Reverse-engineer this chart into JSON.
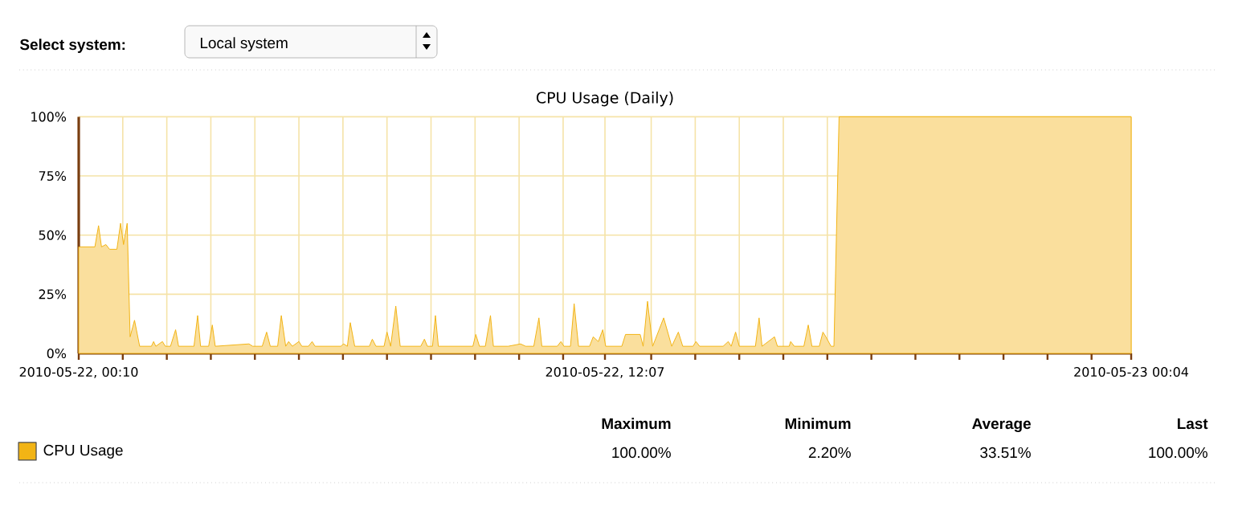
{
  "chart_data": {
    "type": "area",
    "title": "CPU Usage (Daily)",
    "x": [
      "2010-05-22T00:10",
      "2010-05-22T00:32",
      "2010-05-22T00:37",
      "2010-05-22T00:41",
      "2010-05-22T00:47",
      "2010-05-22T00:52",
      "2010-05-22T01:02",
      "2010-05-22T01:07",
      "2010-05-22T01:11",
      "2010-05-22T01:16",
      "2010-05-22T01:20",
      "2010-05-22T01:26",
      "2010-05-22T01:33",
      "2010-05-22T01:49",
      "2010-05-22T01:52",
      "2010-05-22T01:55",
      "2010-05-22T02:04",
      "2010-05-22T02:08",
      "2010-05-22T02:15",
      "2010-05-22T02:22",
      "2010-05-22T02:26",
      "2010-05-22T02:47",
      "2010-05-22T02:52",
      "2010-05-22T02:56",
      "2010-05-22T03:07",
      "2010-05-22T03:12",
      "2010-05-22T03:16",
      "2010-05-22T04:02",
      "2010-05-22T04:07",
      "2010-05-22T04:20",
      "2010-05-22T04:26",
      "2010-05-22T04:31",
      "2010-05-22T04:41",
      "2010-05-22T04:46",
      "2010-05-22T04:52",
      "2010-05-22T04:56",
      "2010-05-22T05:01",
      "2010-05-22T05:10",
      "2010-05-22T05:14",
      "2010-05-22T05:23",
      "2010-05-22T05:28",
      "2010-05-22T05:32",
      "2010-05-22T06:07",
      "2010-05-22T06:11",
      "2010-05-22T06:16",
      "2010-05-22T06:20",
      "2010-05-22T06:26",
      "2010-05-22T06:46",
      "2010-05-22T06:50",
      "2010-05-22T06:55",
      "2010-05-22T07:06",
      "2010-05-22T07:10",
      "2010-05-22T07:15",
      "2010-05-22T07:22",
      "2010-05-22T07:28",
      "2010-05-22T07:56",
      "2010-05-22T08:01",
      "2010-05-22T08:05",
      "2010-05-22T08:12",
      "2010-05-22T08:16",
      "2010-05-22T08:20",
      "2010-05-22T08:34",
      "2010-05-22T08:56",
      "2010-05-22T09:07",
      "2010-05-22T09:11",
      "2010-05-22T09:16",
      "2010-05-22T09:24",
      "2010-05-22T09:31",
      "2010-05-22T09:35",
      "2010-05-22T09:55",
      "2010-05-22T10:12",
      "2010-05-22T10:19",
      "2010-05-22T10:30",
      "2010-05-22T10:37",
      "2010-05-22T10:41",
      "2010-05-22T11:02",
      "2010-05-22T11:07",
      "2010-05-22T11:11",
      "2010-05-22T11:20",
      "2010-05-22T11:25",
      "2010-05-22T11:31",
      "2010-05-22T11:46",
      "2010-05-22T11:51",
      "2010-05-22T11:58",
      "2010-05-22T12:04",
      "2010-05-22T12:08",
      "2010-05-22T12:30",
      "2010-05-22T12:35",
      "2010-05-22T12:55",
      "2010-05-22T12:59",
      "2010-05-22T13:05",
      "2010-05-22T13:12",
      "2010-05-22T13:27",
      "2010-05-22T13:38",
      "2010-05-22T13:47",
      "2010-05-22T13:53",
      "2010-05-22T14:07",
      "2010-05-22T14:11",
      "2010-05-22T14:16",
      "2010-05-22T14:48",
      "2010-05-22T14:55",
      "2010-05-22T14:59",
      "2010-05-22T15:05",
      "2010-05-22T15:10",
      "2010-05-22T15:32",
      "2010-05-22T15:37",
      "2010-05-22T15:41",
      "2010-05-22T15:58",
      "2010-05-22T16:02",
      "2010-05-22T16:18",
      "2010-05-22T16:20",
      "2010-05-22T16:25",
      "2010-05-22T16:38",
      "2010-05-22T16:44",
      "2010-05-22T16:49",
      "2010-05-22T16:59",
      "2010-05-22T17:04",
      "2010-05-22T17:08",
      "2010-05-22T17:15",
      "2010-05-22T17:19",
      "2010-05-22T17:26",
      "2010-05-23T00:04"
    ],
    "series": [
      {
        "name": "CPU Usage",
        "color": "#f2b415",
        "values": [
          45,
          45,
          54,
          45,
          46,
          44,
          44,
          55,
          46,
          55,
          7,
          14,
          3,
          3,
          5,
          3,
          5,
          3,
          3,
          10,
          3,
          3,
          16,
          3,
          3,
          12,
          3,
          4,
          3,
          3,
          9,
          3,
          3,
          16,
          3,
          5,
          3,
          5,
          3,
          3,
          5,
          3,
          3,
          4,
          3,
          13,
          3,
          3,
          6,
          3,
          3,
          9,
          3,
          20,
          3,
          3,
          6,
          3,
          3,
          16,
          3,
          3,
          3,
          3,
          8,
          3,
          3,
          16,
          3,
          3,
          4,
          3,
          3,
          15,
          3,
          3,
          5,
          3,
          3,
          21,
          3,
          3,
          7,
          5,
          10,
          3,
          3,
          8,
          8,
          3,
          22,
          3,
          15,
          3,
          9,
          3,
          3,
          5,
          3,
          3,
          5,
          3,
          9,
          3,
          3,
          15,
          3,
          7,
          3,
          3,
          5,
          3,
          3,
          12,
          3,
          3,
          9,
          7,
          3,
          3,
          100,
          100
        ]
      }
    ],
    "xlim": [
      "2010-05-22T00:10",
      "2010-05-23T00:04"
    ],
    "xticks": [
      {
        "value": "2010-05-22T00:10",
        "label": "2010-05-22, 00:10"
      },
      {
        "value": "2010-05-22T01:10",
        "label": null
      },
      {
        "value": "2010-05-22T02:10",
        "label": null
      },
      {
        "value": "2010-05-22T03:10",
        "label": null
      },
      {
        "value": "2010-05-22T04:10",
        "label": null
      },
      {
        "value": "2010-05-22T05:10",
        "label": null
      },
      {
        "value": "2010-05-22T06:10",
        "label": null
      },
      {
        "value": "2010-05-22T07:10",
        "label": null
      },
      {
        "value": "2010-05-22T08:10",
        "label": null
      },
      {
        "value": "2010-05-22T09:10",
        "label": null
      },
      {
        "value": "2010-05-22T10:10",
        "label": null
      },
      {
        "value": "2010-05-22T11:10",
        "label": null
      },
      {
        "value": "2010-05-22T12:07",
        "label": "2010-05-22, 12:07"
      },
      {
        "value": "2010-05-22T13:10",
        "label": null
      },
      {
        "value": "2010-05-22T14:10",
        "label": null
      },
      {
        "value": "2010-05-22T15:10",
        "label": null
      },
      {
        "value": "2010-05-22T16:10",
        "label": null
      },
      {
        "value": "2010-05-22T17:10",
        "label": null
      },
      {
        "value": "2010-05-22T18:10",
        "label": null
      },
      {
        "value": "2010-05-22T19:10",
        "label": null
      },
      {
        "value": "2010-05-22T20:10",
        "label": null
      },
      {
        "value": "2010-05-22T21:10",
        "label": null
      },
      {
        "value": "2010-05-22T22:10",
        "label": null
      },
      {
        "value": "2010-05-22T23:10",
        "label": null
      },
      {
        "value": "2010-05-23T00:04",
        "label": "2010-05-23 00:04"
      }
    ],
    "ylim": [
      0,
      100
    ],
    "yticks": [
      {
        "value": 0,
        "label": "0%"
      },
      {
        "value": 25,
        "label": "25%"
      },
      {
        "value": 50,
        "label": "50%"
      },
      {
        "value": 75,
        "label": "75%"
      },
      {
        "value": 100,
        "label": "100%"
      }
    ],
    "grid": true,
    "legend": "bottom",
    "annotations": [
      "Select system:",
      "Local system",
      "Maximum",
      "Minimum",
      "Average",
      "Last",
      "100.00%",
      "2.20%",
      "33.51%",
      "100.00%"
    ]
  }
}
